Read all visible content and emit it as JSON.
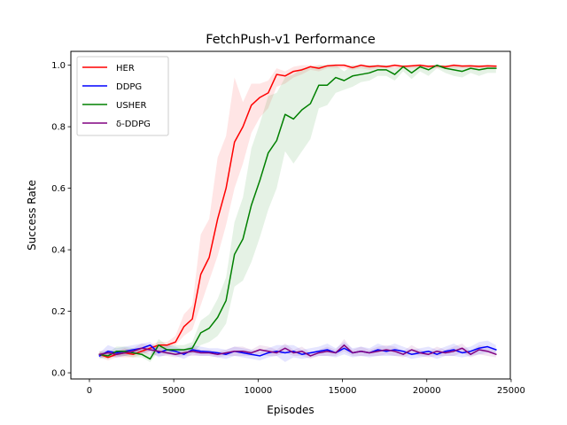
{
  "chart_data": {
    "type": "line",
    "title": "FetchPush-v1 Performance",
    "xlabel": "Episodes",
    "ylabel": "Success Rate",
    "xlim": [
      -1100,
      24950
    ],
    "ylim": [
      -0.02,
      1.045
    ],
    "xticks": [
      0,
      5000,
      10000,
      15000,
      20000,
      25000
    ],
    "xtick_labels": [
      "0",
      "5000",
      "10000",
      "15000",
      "20000",
      "25000"
    ],
    "yticks": [
      0.0,
      0.2,
      0.4,
      0.6,
      0.8,
      1.0
    ],
    "ytick_labels": [
      "0.0",
      "0.2",
      "0.4",
      "0.6",
      "0.8",
      "1.0"
    ],
    "grid": false,
    "legend_position": "top-left",
    "x": [
      600,
      1100,
      1600,
      2100,
      2600,
      3100,
      3600,
      4100,
      4600,
      5100,
      5600,
      6100,
      6600,
      7100,
      7600,
      8100,
      8600,
      9100,
      9600,
      10100,
      10600,
      11100,
      11600,
      12100,
      12600,
      13100,
      13600,
      14100,
      14600,
      15100,
      15600,
      16100,
      16600,
      17100,
      17600,
      18100,
      18600,
      19100,
      19600,
      20100,
      20600,
      21100,
      21600,
      22100,
      22600,
      23100,
      23600,
      24100
    ],
    "series": [
      {
        "name": "HER",
        "color": "#ff0000",
        "values": [
          0.06,
          0.05,
          0.06,
          0.065,
          0.06,
          0.07,
          0.08,
          0.09,
          0.09,
          0.1,
          0.15,
          0.175,
          0.32,
          0.375,
          0.5,
          0.6,
          0.75,
          0.8,
          0.87,
          0.895,
          0.91,
          0.97,
          0.965,
          0.98,
          0.985,
          0.995,
          0.99,
          0.998,
          1.0,
          1.0,
          0.992,
          1.0,
          0.995,
          0.998,
          0.995,
          1.0,
          0.996,
          0.998,
          1.0,
          0.996,
          0.998,
          0.995,
          1.0,
          0.997,
          0.998,
          0.996,
          0.998,
          0.997
        ],
        "band_low": [
          0.05,
          0.04,
          0.05,
          0.05,
          0.05,
          0.06,
          0.07,
          0.08,
          0.08,
          0.09,
          0.12,
          0.14,
          0.22,
          0.3,
          0.38,
          0.48,
          0.6,
          0.68,
          0.78,
          0.83,
          0.86,
          0.93,
          0.94,
          0.96,
          0.97,
          0.985,
          0.98,
          0.99,
          0.99,
          0.99,
          0.985,
          0.99,
          0.985,
          0.99,
          0.99,
          0.99,
          0.99,
          0.99,
          0.99,
          0.99,
          0.99,
          0.99,
          0.99,
          0.99,
          0.99,
          0.99,
          0.99,
          0.99
        ],
        "band_high": [
          0.07,
          0.06,
          0.07,
          0.08,
          0.07,
          0.08,
          0.09,
          0.1,
          0.1,
          0.12,
          0.19,
          0.22,
          0.45,
          0.5,
          0.7,
          0.77,
          0.96,
          0.88,
          0.94,
          0.94,
          0.95,
          0.99,
          0.98,
          0.995,
          1.0,
          1.0,
          1.0,
          1.0,
          1.0,
          1.0,
          1.0,
          1.0,
          1.0,
          1.0,
          1.0,
          1.0,
          1.0,
          1.0,
          1.0,
          1.0,
          1.0,
          1.0,
          1.0,
          1.0,
          1.0,
          1.0,
          1.0,
          1.0
        ]
      },
      {
        "name": "DDPG",
        "color": "#0000ff",
        "values": [
          0.055,
          0.07,
          0.065,
          0.07,
          0.075,
          0.08,
          0.09,
          0.065,
          0.075,
          0.07,
          0.06,
          0.075,
          0.07,
          0.068,
          0.065,
          0.06,
          0.07,
          0.065,
          0.06,
          0.055,
          0.065,
          0.07,
          0.065,
          0.07,
          0.06,
          0.065,
          0.07,
          0.075,
          0.065,
          0.08,
          0.065,
          0.07,
          0.065,
          0.075,
          0.07,
          0.075,
          0.07,
          0.06,
          0.065,
          0.07,
          0.06,
          0.07,
          0.075,
          0.065,
          0.07,
          0.08,
          0.085,
          0.075
        ],
        "band_low": [
          0.045,
          0.055,
          0.05,
          0.055,
          0.06,
          0.065,
          0.07,
          0.05,
          0.06,
          0.055,
          0.045,
          0.06,
          0.055,
          0.055,
          0.05,
          0.045,
          0.055,
          0.05,
          0.045,
          0.04,
          0.05,
          0.055,
          0.035,
          0.05,
          0.045,
          0.05,
          0.055,
          0.055,
          0.05,
          0.06,
          0.05,
          0.055,
          0.05,
          0.055,
          0.055,
          0.055,
          0.055,
          0.045,
          0.05,
          0.055,
          0.045,
          0.055,
          0.055,
          0.05,
          0.055,
          0.06,
          0.065,
          0.06
        ],
        "band_high": [
          0.065,
          0.09,
          0.08,
          0.085,
          0.09,
          0.095,
          0.1,
          0.08,
          0.09,
          0.085,
          0.075,
          0.09,
          0.085,
          0.08,
          0.08,
          0.075,
          0.085,
          0.08,
          0.075,
          0.07,
          0.08,
          0.09,
          0.09,
          0.09,
          0.075,
          0.08,
          0.085,
          0.095,
          0.08,
          0.1,
          0.08,
          0.085,
          0.08,
          0.095,
          0.085,
          0.095,
          0.085,
          0.075,
          0.08,
          0.085,
          0.075,
          0.085,
          0.095,
          0.08,
          0.085,
          0.1,
          0.105,
          0.09
        ]
      },
      {
        "name": "USHER",
        "color": "#008000",
        "values": [
          0.06,
          0.055,
          0.07,
          0.07,
          0.065,
          0.06,
          0.045,
          0.09,
          0.075,
          0.075,
          0.075,
          0.08,
          0.13,
          0.145,
          0.18,
          0.235,
          0.385,
          0.435,
          0.545,
          0.625,
          0.715,
          0.755,
          0.84,
          0.825,
          0.855,
          0.875,
          0.935,
          0.935,
          0.96,
          0.95,
          0.965,
          0.97,
          0.975,
          0.985,
          0.985,
          0.97,
          0.995,
          0.975,
          0.995,
          0.985,
          1.0,
          0.99,
          0.985,
          0.98,
          0.99,
          0.985,
          0.99,
          0.99
        ],
        "band_low": [
          0.05,
          0.045,
          0.055,
          0.055,
          0.05,
          0.05,
          0.035,
          0.07,
          0.06,
          0.06,
          0.06,
          0.065,
          0.09,
          0.1,
          0.12,
          0.16,
          0.28,
          0.3,
          0.36,
          0.44,
          0.53,
          0.6,
          0.72,
          0.68,
          0.72,
          0.76,
          0.86,
          0.87,
          0.91,
          0.92,
          0.93,
          0.945,
          0.95,
          0.965,
          0.965,
          0.95,
          0.98,
          0.955,
          0.98,
          0.965,
          0.99,
          0.975,
          0.965,
          0.96,
          0.975,
          0.965,
          0.975,
          0.975
        ],
        "band_high": [
          0.07,
          0.065,
          0.085,
          0.085,
          0.08,
          0.075,
          0.06,
          0.11,
          0.09,
          0.09,
          0.09,
          0.1,
          0.17,
          0.19,
          0.24,
          0.31,
          0.49,
          0.57,
          0.73,
          0.81,
          0.9,
          0.91,
          0.96,
          0.97,
          0.99,
          0.99,
          1.0,
          1.0,
          1.0,
          0.98,
          1.0,
          0.995,
          1.0,
          1.0,
          1.0,
          0.99,
          1.0,
          0.995,
          1.0,
          1.0,
          1.0,
          1.0,
          1.0,
          1.0,
          1.0,
          1.0,
          1.0,
          1.0
        ]
      },
      {
        "name": "δ-DDPG",
        "color": "#800080",
        "values": [
          0.06,
          0.065,
          0.06,
          0.065,
          0.07,
          0.08,
          0.075,
          0.07,
          0.065,
          0.06,
          0.065,
          0.07,
          0.065,
          0.065,
          0.06,
          0.065,
          0.07,
          0.07,
          0.065,
          0.075,
          0.07,
          0.065,
          0.08,
          0.065,
          0.07,
          0.055,
          0.065,
          0.07,
          0.065,
          0.09,
          0.065,
          0.07,
          0.065,
          0.07,
          0.075,
          0.07,
          0.06,
          0.075,
          0.065,
          0.06,
          0.07,
          0.065,
          0.07,
          0.08,
          0.06,
          0.075,
          0.07,
          0.06
        ],
        "band_low": [
          0.05,
          0.055,
          0.05,
          0.055,
          0.06,
          0.065,
          0.06,
          0.055,
          0.055,
          0.05,
          0.055,
          0.055,
          0.055,
          0.055,
          0.05,
          0.055,
          0.055,
          0.055,
          0.055,
          0.06,
          0.055,
          0.055,
          0.065,
          0.055,
          0.055,
          0.045,
          0.055,
          0.055,
          0.055,
          0.07,
          0.055,
          0.055,
          0.055,
          0.055,
          0.06,
          0.055,
          0.05,
          0.06,
          0.055,
          0.05,
          0.055,
          0.055,
          0.055,
          0.065,
          0.05,
          0.06,
          0.055,
          0.05
        ],
        "band_high": [
          0.07,
          0.075,
          0.07,
          0.075,
          0.08,
          0.095,
          0.09,
          0.085,
          0.075,
          0.07,
          0.075,
          0.085,
          0.075,
          0.075,
          0.07,
          0.075,
          0.085,
          0.085,
          0.075,
          0.09,
          0.085,
          0.075,
          0.095,
          0.075,
          0.085,
          0.065,
          0.075,
          0.085,
          0.075,
          0.11,
          0.075,
          0.085,
          0.075,
          0.085,
          0.09,
          0.085,
          0.07,
          0.09,
          0.075,
          0.07,
          0.085,
          0.075,
          0.085,
          0.095,
          0.07,
          0.09,
          0.085,
          0.07
        ]
      }
    ]
  }
}
